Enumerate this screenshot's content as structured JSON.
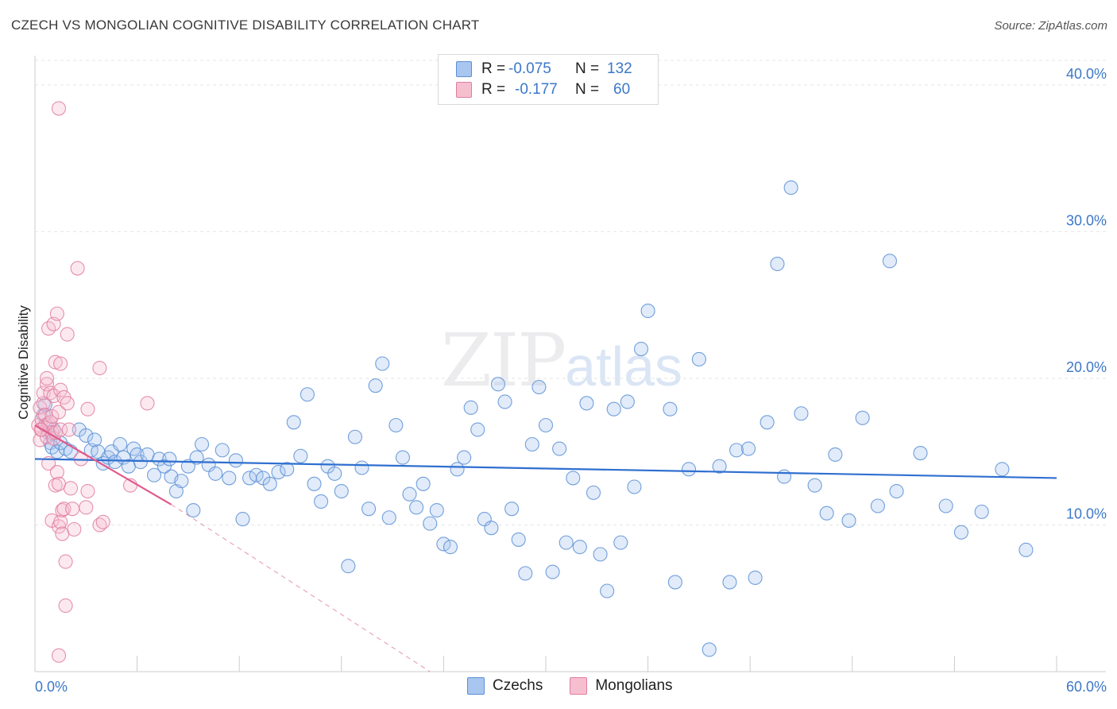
{
  "title": "CZECH VS MONGOLIAN COGNITIVE DISABILITY CORRELATION CHART",
  "source": "Source: ZipAtlas.com",
  "watermark": {
    "zip": "ZIP",
    "atlas": "atlas"
  },
  "legend": {
    "rows": [
      {
        "r_label": "R =",
        "r_value": "-0.075",
        "n_label": "N =",
        "n_value": "132",
        "color": "#a8c6ef",
        "border": "#5b8fd6"
      },
      {
        "r_label": "R =",
        "r_value": "-0.177",
        "n_label": "N =",
        "n_value": "60",
        "color": "#f6bfd0",
        "border": "#e07ea0"
      }
    ]
  },
  "bottom_legend": [
    {
      "label": "Czechs",
      "color": "#a8c6ef",
      "border": "#5b8fd6"
    },
    {
      "label": "Mongolians",
      "color": "#f6bfd0",
      "border": "#e07ea0"
    }
  ],
  "chart_data": {
    "type": "scatter",
    "title": "CZECH VS MONGOLIAN COGNITIVE DISABILITY CORRELATION CHART",
    "xlabel": "",
    "ylabel": "Cognitive Disability",
    "xlim": [
      0,
      60
    ],
    "ylim": [
      0,
      42
    ],
    "x_tick_labels": [
      "0.0%",
      "60.0%"
    ],
    "y_ticks": [
      10,
      20,
      30,
      40
    ],
    "y_tick_labels": [
      "10.0%",
      "20.0%",
      "30.0%",
      "40.0%"
    ],
    "grid": true,
    "legend_position": "top-center",
    "series": [
      {
        "name": "Czechs",
        "color": "#5b8fd6",
        "trend": {
          "x": [
            0,
            60
          ],
          "y": [
            14.5,
            13.2
          ]
        },
        "points": [
          [
            0.5,
            17.5
          ],
          [
            0.6,
            18.2
          ],
          [
            0.7,
            16.8
          ],
          [
            0.8,
            16.3
          ],
          [
            0.9,
            15.6
          ],
          [
            1.0,
            15.3
          ],
          [
            1.1,
            16.5
          ],
          [
            1.3,
            15.0
          ],
          [
            1.5,
            15.6
          ],
          [
            1.8,
            15.2
          ],
          [
            2.1,
            15.0
          ],
          [
            2.6,
            16.5
          ],
          [
            3.0,
            16.1
          ],
          [
            3.3,
            15.1
          ],
          [
            3.5,
            15.8
          ],
          [
            3.7,
            15.0
          ],
          [
            4.0,
            14.2
          ],
          [
            4.3,
            14.6
          ],
          [
            4.5,
            15.0
          ],
          [
            4.7,
            14.3
          ],
          [
            5.0,
            15.5
          ],
          [
            5.2,
            14.6
          ],
          [
            5.5,
            14.0
          ],
          [
            5.8,
            15.2
          ],
          [
            6.0,
            14.8
          ],
          [
            6.2,
            14.3
          ],
          [
            6.6,
            14.8
          ],
          [
            7.0,
            13.4
          ],
          [
            7.3,
            14.5
          ],
          [
            7.6,
            14.0
          ],
          [
            8.0,
            13.3
          ],
          [
            8.3,
            12.3
          ],
          [
            8.6,
            13.0
          ],
          [
            9.0,
            14.0
          ],
          [
            9.3,
            11.0
          ],
          [
            9.8,
            15.5
          ],
          [
            10.2,
            14.1
          ],
          [
            10.6,
            13.5
          ],
          [
            11.0,
            15.1
          ],
          [
            11.4,
            13.2
          ],
          [
            11.8,
            14.4
          ],
          [
            12.2,
            10.4
          ],
          [
            12.6,
            13.2
          ],
          [
            13.0,
            13.4
          ],
          [
            13.4,
            13.2
          ],
          [
            13.8,
            12.8
          ],
          [
            14.3,
            13.6
          ],
          [
            14.8,
            13.8
          ],
          [
            15.2,
            17.0
          ],
          [
            15.6,
            14.7
          ],
          [
            16.0,
            18.9
          ],
          [
            16.4,
            12.8
          ],
          [
            16.8,
            11.6
          ],
          [
            17.2,
            14.0
          ],
          [
            17.6,
            13.5
          ],
          [
            18.0,
            12.3
          ],
          [
            18.4,
            7.2
          ],
          [
            18.8,
            16.0
          ],
          [
            19.2,
            13.9
          ],
          [
            19.6,
            11.1
          ],
          [
            20.0,
            19.5
          ],
          [
            20.4,
            21.0
          ],
          [
            20.8,
            10.5
          ],
          [
            21.2,
            16.8
          ],
          [
            21.6,
            14.6
          ],
          [
            22.0,
            12.1
          ],
          [
            22.4,
            11.2
          ],
          [
            22.8,
            12.8
          ],
          [
            23.2,
            10.1
          ],
          [
            23.6,
            11.0
          ],
          [
            24.0,
            8.7
          ],
          [
            24.4,
            8.5
          ],
          [
            24.8,
            13.8
          ],
          [
            25.2,
            14.6
          ],
          [
            25.6,
            18.0
          ],
          [
            26.0,
            16.5
          ],
          [
            26.4,
            10.4
          ],
          [
            26.8,
            9.8
          ],
          [
            27.2,
            19.6
          ],
          [
            27.6,
            18.4
          ],
          [
            28.0,
            11.1
          ],
          [
            28.4,
            9.0
          ],
          [
            28.8,
            6.7
          ],
          [
            29.2,
            15.5
          ],
          [
            29.6,
            19.4
          ],
          [
            30.0,
            16.8
          ],
          [
            30.4,
            6.8
          ],
          [
            30.8,
            15.2
          ],
          [
            31.2,
            8.8
          ],
          [
            31.6,
            13.2
          ],
          [
            32.0,
            8.5
          ],
          [
            32.4,
            18.3
          ],
          [
            32.8,
            12.2
          ],
          [
            33.2,
            8.0
          ],
          [
            33.6,
            5.5
          ],
          [
            34.0,
            17.9
          ],
          [
            34.4,
            8.8
          ],
          [
            34.8,
            18.4
          ],
          [
            35.2,
            12.6
          ],
          [
            35.6,
            22.0
          ],
          [
            36.0,
            24.6
          ],
          [
            37.3,
            17.9
          ],
          [
            37.6,
            6.1
          ],
          [
            38.4,
            13.8
          ],
          [
            39.0,
            21.3
          ],
          [
            39.6,
            1.5
          ],
          [
            40.2,
            14.0
          ],
          [
            40.8,
            6.1
          ],
          [
            41.2,
            15.1
          ],
          [
            41.9,
            15.2
          ],
          [
            42.3,
            6.4
          ],
          [
            43.0,
            17.0
          ],
          [
            43.6,
            27.8
          ],
          [
            44.0,
            13.3
          ],
          [
            44.4,
            33.0
          ],
          [
            45.0,
            17.6
          ],
          [
            45.8,
            12.7
          ],
          [
            46.5,
            10.8
          ],
          [
            47.0,
            14.8
          ],
          [
            47.8,
            10.3
          ],
          [
            48.6,
            17.3
          ],
          [
            49.5,
            11.3
          ],
          [
            50.2,
            28.0
          ],
          [
            50.6,
            12.3
          ],
          [
            52.0,
            14.9
          ],
          [
            53.5,
            11.3
          ],
          [
            54.4,
            9.5
          ],
          [
            55.6,
            10.9
          ],
          [
            56.8,
            13.8
          ],
          [
            58.2,
            8.3
          ],
          [
            7.9,
            14.5
          ],
          [
            9.5,
            14.6
          ]
        ]
      },
      {
        "name": "Mongolians",
        "color": "#e07ea0",
        "trend": {
          "x": [
            0,
            8.0
          ],
          "y": [
            16.8,
            11.4
          ]
        },
        "trend_extended": {
          "x": [
            8.0,
            23.2
          ],
          "y": [
            11.4,
            0
          ]
        },
        "points": [
          [
            0.2,
            16.8
          ],
          [
            0.3,
            18.0
          ],
          [
            0.3,
            15.8
          ],
          [
            0.4,
            17.2
          ],
          [
            0.4,
            16.5
          ],
          [
            0.5,
            18.3
          ],
          [
            0.5,
            19.0
          ],
          [
            0.6,
            16.8
          ],
          [
            0.6,
            17.5
          ],
          [
            0.7,
            16.0
          ],
          [
            0.7,
            19.6
          ],
          [
            0.7,
            20.0
          ],
          [
            0.8,
            23.4
          ],
          [
            0.8,
            14.2
          ],
          [
            0.8,
            16.9
          ],
          [
            0.9,
            19.0
          ],
          [
            0.9,
            17.0
          ],
          [
            1.0,
            16.3
          ],
          [
            1.0,
            10.3
          ],
          [
            1.0,
            17.4
          ],
          [
            1.1,
            23.7
          ],
          [
            1.1,
            15.9
          ],
          [
            1.1,
            18.8
          ],
          [
            1.2,
            16.3
          ],
          [
            1.2,
            12.7
          ],
          [
            1.2,
            21.1
          ],
          [
            1.3,
            13.6
          ],
          [
            1.3,
            24.4
          ],
          [
            1.4,
            9.9
          ],
          [
            1.4,
            12.8
          ],
          [
            1.4,
            1.1
          ],
          [
            1.4,
            38.4
          ],
          [
            1.4,
            17.7
          ],
          [
            1.5,
            21.0
          ],
          [
            1.5,
            16.5
          ],
          [
            1.5,
            19.2
          ],
          [
            1.5,
            10.2
          ],
          [
            1.6,
            9.4
          ],
          [
            1.6,
            11.0
          ],
          [
            1.7,
            11.1
          ],
          [
            1.7,
            18.7
          ],
          [
            1.8,
            4.5
          ],
          [
            1.8,
            7.5
          ],
          [
            1.9,
            18.3
          ],
          [
            1.9,
            23.0
          ],
          [
            2.0,
            16.5
          ],
          [
            2.1,
            12.5
          ],
          [
            2.2,
            11.1
          ],
          [
            2.3,
            9.7
          ],
          [
            2.5,
            27.5
          ],
          [
            2.7,
            14.5
          ],
          [
            3.0,
            11.2
          ],
          [
            3.1,
            12.3
          ],
          [
            3.1,
            17.9
          ],
          [
            3.8,
            20.7
          ],
          [
            3.8,
            10.0
          ],
          [
            4.0,
            10.2
          ],
          [
            5.6,
            12.7
          ],
          [
            6.6,
            18.3
          ],
          [
            0.35,
            16.5
          ]
        ]
      }
    ]
  }
}
